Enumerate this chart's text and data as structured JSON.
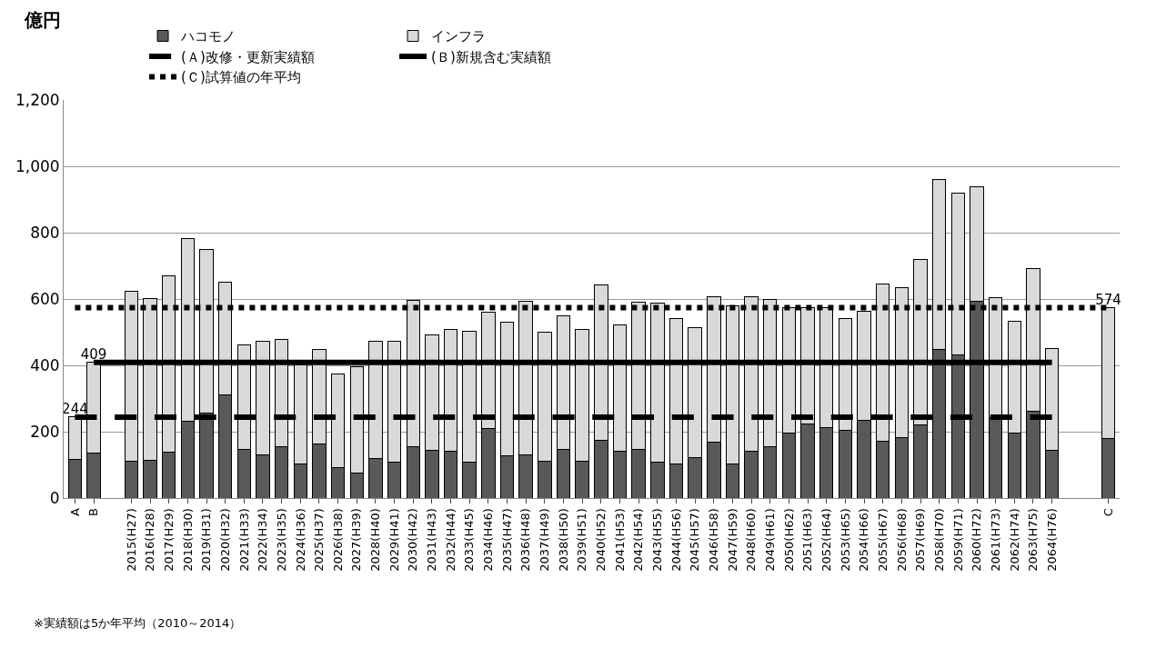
{
  "chart_data": {
    "type": "bar",
    "stacked": true,
    "ylabel": "億円",
    "annotations": [
      "※実績額は5か年平均（2010～2014）"
    ],
    "categories": [
      "A",
      "B",
      null,
      "2015(H27)",
      "2016(H28)",
      "2017(H29)",
      "2018(H30)",
      "2019(H31)",
      "2020(H32)",
      "2021(H33)",
      "2022(H34)",
      "2023(H35)",
      "2024(H36)",
      "2025(H37)",
      "2026(H38)",
      "2027(H39)",
      "2028(H40)",
      "2029(H41)",
      "2030(H42)",
      "2031(H43)",
      "2032(H44)",
      "2033(H45)",
      "2034(H46)",
      "2035(H47)",
      "2036(H48)",
      "2037(H49)",
      "2038(H50)",
      "2039(H51)",
      "2040(H52)",
      "2041(H53)",
      "2042(H54)",
      "2043(H55)",
      "2044(H56)",
      "2045(H57)",
      "2046(H58)",
      "2047(H59)",
      "2048(H60)",
      "2049(H61)",
      "2050(H62)",
      "2051(H63)",
      "2052(H64)",
      "2053(H65)",
      "2054(H66)",
      "2055(H67)",
      "2056(H68)",
      "2057(H69)",
      "2058(H70)",
      "2059(H71)",
      "2060(H72)",
      "2061(H73)",
      "2062(H74)",
      "2063(H75)",
      "2064(H76)",
      null,
      null,
      "C"
    ],
    "series": [
      {
        "name": "ハコモノ",
        "color": "#595959",
        "values": [
          117,
          136,
          null,
          110,
          115,
          139,
          232,
          256,
          310,
          146,
          129,
          156,
          102,
          162,
          93,
          76,
          120,
          108,
          154,
          144,
          141,
          107,
          210,
          127,
          131,
          112,
          146,
          112,
          173,
          142,
          146,
          108,
          103,
          123,
          168,
          103,
          142,
          156,
          195,
          222,
          212,
          205,
          234,
          170,
          181,
          220,
          448,
          431,
          592,
          243,
          195,
          261,
          144,
          null,
          null,
          180
        ]
      },
      {
        "name": "インフラ",
        "color": "#d9d9d9",
        "values": [
          127,
          273,
          null,
          514,
          487,
          531,
          551,
          492,
          340,
          316,
          343,
          322,
          300,
          286,
          282,
          319,
          352,
          364,
          441,
          348,
          368,
          395,
          351,
          403,
          461,
          387,
          402,
          397,
          469,
          380,
          445,
          479,
          438,
          391,
          440,
          476,
          465,
          442,
          379,
          352,
          362,
          336,
          330,
          475,
          454,
          500,
          513,
          487,
          347,
          360,
          337,
          430,
          307,
          null,
          null,
          394
        ]
      },
      {
        "name": "(Ａ)改修・更新実績額",
        "type": "line",
        "line_style": "dashed",
        "color": "#000000",
        "values": [
          244,
          244,
          244,
          244,
          244,
          244,
          244,
          244,
          244,
          244,
          244,
          244,
          244,
          244,
          244,
          244,
          244,
          244,
          244,
          244,
          244,
          244,
          244,
          244,
          244,
          244,
          244,
          244,
          244,
          244,
          244,
          244,
          244,
          244,
          244,
          244,
          244,
          244,
          244,
          244,
          244,
          244,
          244,
          244,
          244,
          244,
          244,
          244,
          244,
          244,
          244,
          244,
          244,
          null,
          null,
          null
        ],
        "value_labels": [
          "244",
          null,
          null,
          null,
          null,
          null,
          null,
          null,
          null,
          null,
          null,
          null,
          null,
          null,
          null,
          null,
          null,
          null,
          null,
          null,
          null,
          null,
          null,
          null,
          null,
          null,
          null,
          null,
          null,
          null,
          null,
          null,
          null,
          null,
          null,
          null,
          null,
          null,
          null,
          null,
          null,
          null,
          null,
          null,
          null,
          null,
          null,
          null,
          null,
          null,
          null,
          null,
          null,
          null,
          null,
          null
        ]
      },
      {
        "name": "(Ｂ)新規含む実績額",
        "type": "line",
        "line_style": "solid",
        "color": "#000000",
        "values": [
          null,
          409,
          409,
          409,
          409,
          409,
          409,
          409,
          409,
          409,
          409,
          409,
          409,
          409,
          409,
          409,
          409,
          409,
          409,
          409,
          409,
          409,
          409,
          409,
          409,
          409,
          409,
          409,
          409,
          409,
          409,
          409,
          409,
          409,
          409,
          409,
          409,
          409,
          409,
          409,
          409,
          409,
          409,
          409,
          409,
          409,
          409,
          409,
          409,
          409,
          409,
          409,
          409,
          null,
          null,
          null
        ],
        "value_labels": [
          null,
          "409",
          null,
          null,
          null,
          null,
          null,
          null,
          null,
          null,
          null,
          null,
          null,
          null,
          null,
          null,
          null,
          null,
          null,
          null,
          null,
          null,
          null,
          null,
          null,
          null,
          null,
          null,
          null,
          null,
          null,
          null,
          null,
          null,
          null,
          null,
          null,
          null,
          null,
          null,
          null,
          null,
          null,
          null,
          null,
          null,
          null,
          null,
          null,
          null,
          null,
          null,
          null,
          null,
          null,
          null
        ]
      },
      {
        "name": "(Ｃ)試算値の年平均",
        "type": "line",
        "line_style": "dotted",
        "color": "#000000",
        "values": [
          574,
          574,
          574,
          574,
          574,
          574,
          574,
          574,
          574,
          574,
          574,
          574,
          574,
          574,
          574,
          574,
          574,
          574,
          574,
          574,
          574,
          574,
          574,
          574,
          574,
          574,
          574,
          574,
          574,
          574,
          574,
          574,
          574,
          574,
          574,
          574,
          574,
          574,
          574,
          574,
          574,
          574,
          574,
          574,
          574,
          574,
          574,
          574,
          574,
          574,
          574,
          574,
          574,
          574,
          574,
          574
        ],
        "value_labels": [
          null,
          null,
          null,
          null,
          null,
          null,
          null,
          null,
          null,
          null,
          null,
          null,
          null,
          null,
          null,
          null,
          null,
          null,
          null,
          null,
          null,
          null,
          null,
          null,
          null,
          null,
          null,
          null,
          null,
          null,
          null,
          null,
          null,
          null,
          null,
          null,
          null,
          null,
          null,
          null,
          null,
          null,
          null,
          null,
          null,
          null,
          null,
          null,
          null,
          null,
          null,
          null,
          null,
          null,
          null,
          "574"
        ]
      }
    ],
    "ylim": [
      0,
      1200
    ],
    "yticks": [
      0,
      200,
      400,
      600,
      800,
      {
        "value": 1000,
        "label": "1,000"
      },
      {
        "value": 1200,
        "label": "1,200"
      }
    ],
    "grid": "y",
    "legend": "top"
  }
}
